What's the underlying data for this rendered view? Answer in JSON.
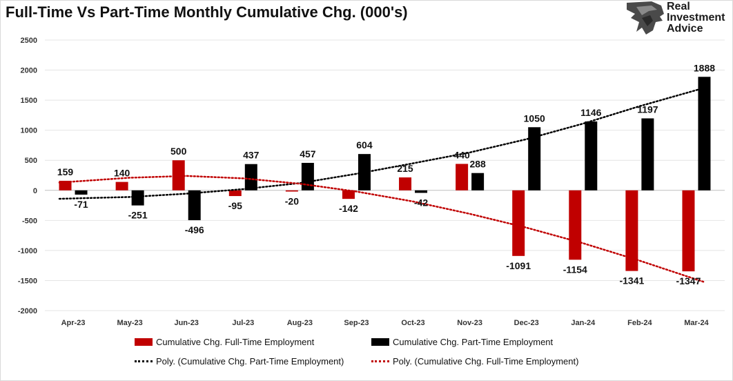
{
  "title": "Full-Time Vs Part-Time Monthly Cumulative Chg. (000's)",
  "logo": {
    "line1": "Real",
    "line2": "Investment",
    "line3": "Advice",
    "icon": "eagle-head-icon"
  },
  "chart_data": {
    "type": "bar",
    "title": "Full-Time Vs Part-Time Monthly Cumulative Chg. (000's)",
    "categories": [
      "Apr-23",
      "May-23",
      "Jun-23",
      "Jul-23",
      "Aug-23",
      "Sep-23",
      "Oct-23",
      "Nov-23",
      "Dec-23",
      "Jan-24",
      "Feb-24",
      "Mar-24"
    ],
    "series": [
      {
        "name": "Cumulative Chg. Full-Time Employment",
        "color": "#c00000",
        "values": [
          159,
          140,
          500,
          -95,
          -20,
          -142,
          215,
          440,
          -1091,
          -1154,
          -1341,
          -1347
        ]
      },
      {
        "name": "Cumulative Chg. Part-Time Employment",
        "color": "#000000",
        "values": [
          -71,
          -251,
          -496,
          437,
          457,
          604,
          -42,
          288,
          1050,
          1146,
          1197,
          1888
        ]
      }
    ],
    "trendlines": [
      {
        "name": "Poly. (Cumulative Chg. Part-Time Employment)",
        "color": "#000000",
        "style": "dotted",
        "values": [
          -140,
          -110,
          -55,
          20,
          120,
          275,
          450,
          630,
          850,
          1110,
          1400,
          1700
        ]
      },
      {
        "name": "Poly. (Cumulative Chg. Full-Time Employment)",
        "color": "#c00000",
        "style": "dotted",
        "values": [
          130,
          210,
          240,
          200,
          110,
          -20,
          -185,
          -390,
          -620,
          -880,
          -1170,
          -1520
        ]
      }
    ],
    "ylim": [
      -2000,
      2500
    ],
    "yticks": [
      -2000,
      -1500,
      -1000,
      -500,
      0,
      500,
      1000,
      1500,
      2000,
      2500
    ],
    "grid": true,
    "legend_position": "bottom"
  }
}
